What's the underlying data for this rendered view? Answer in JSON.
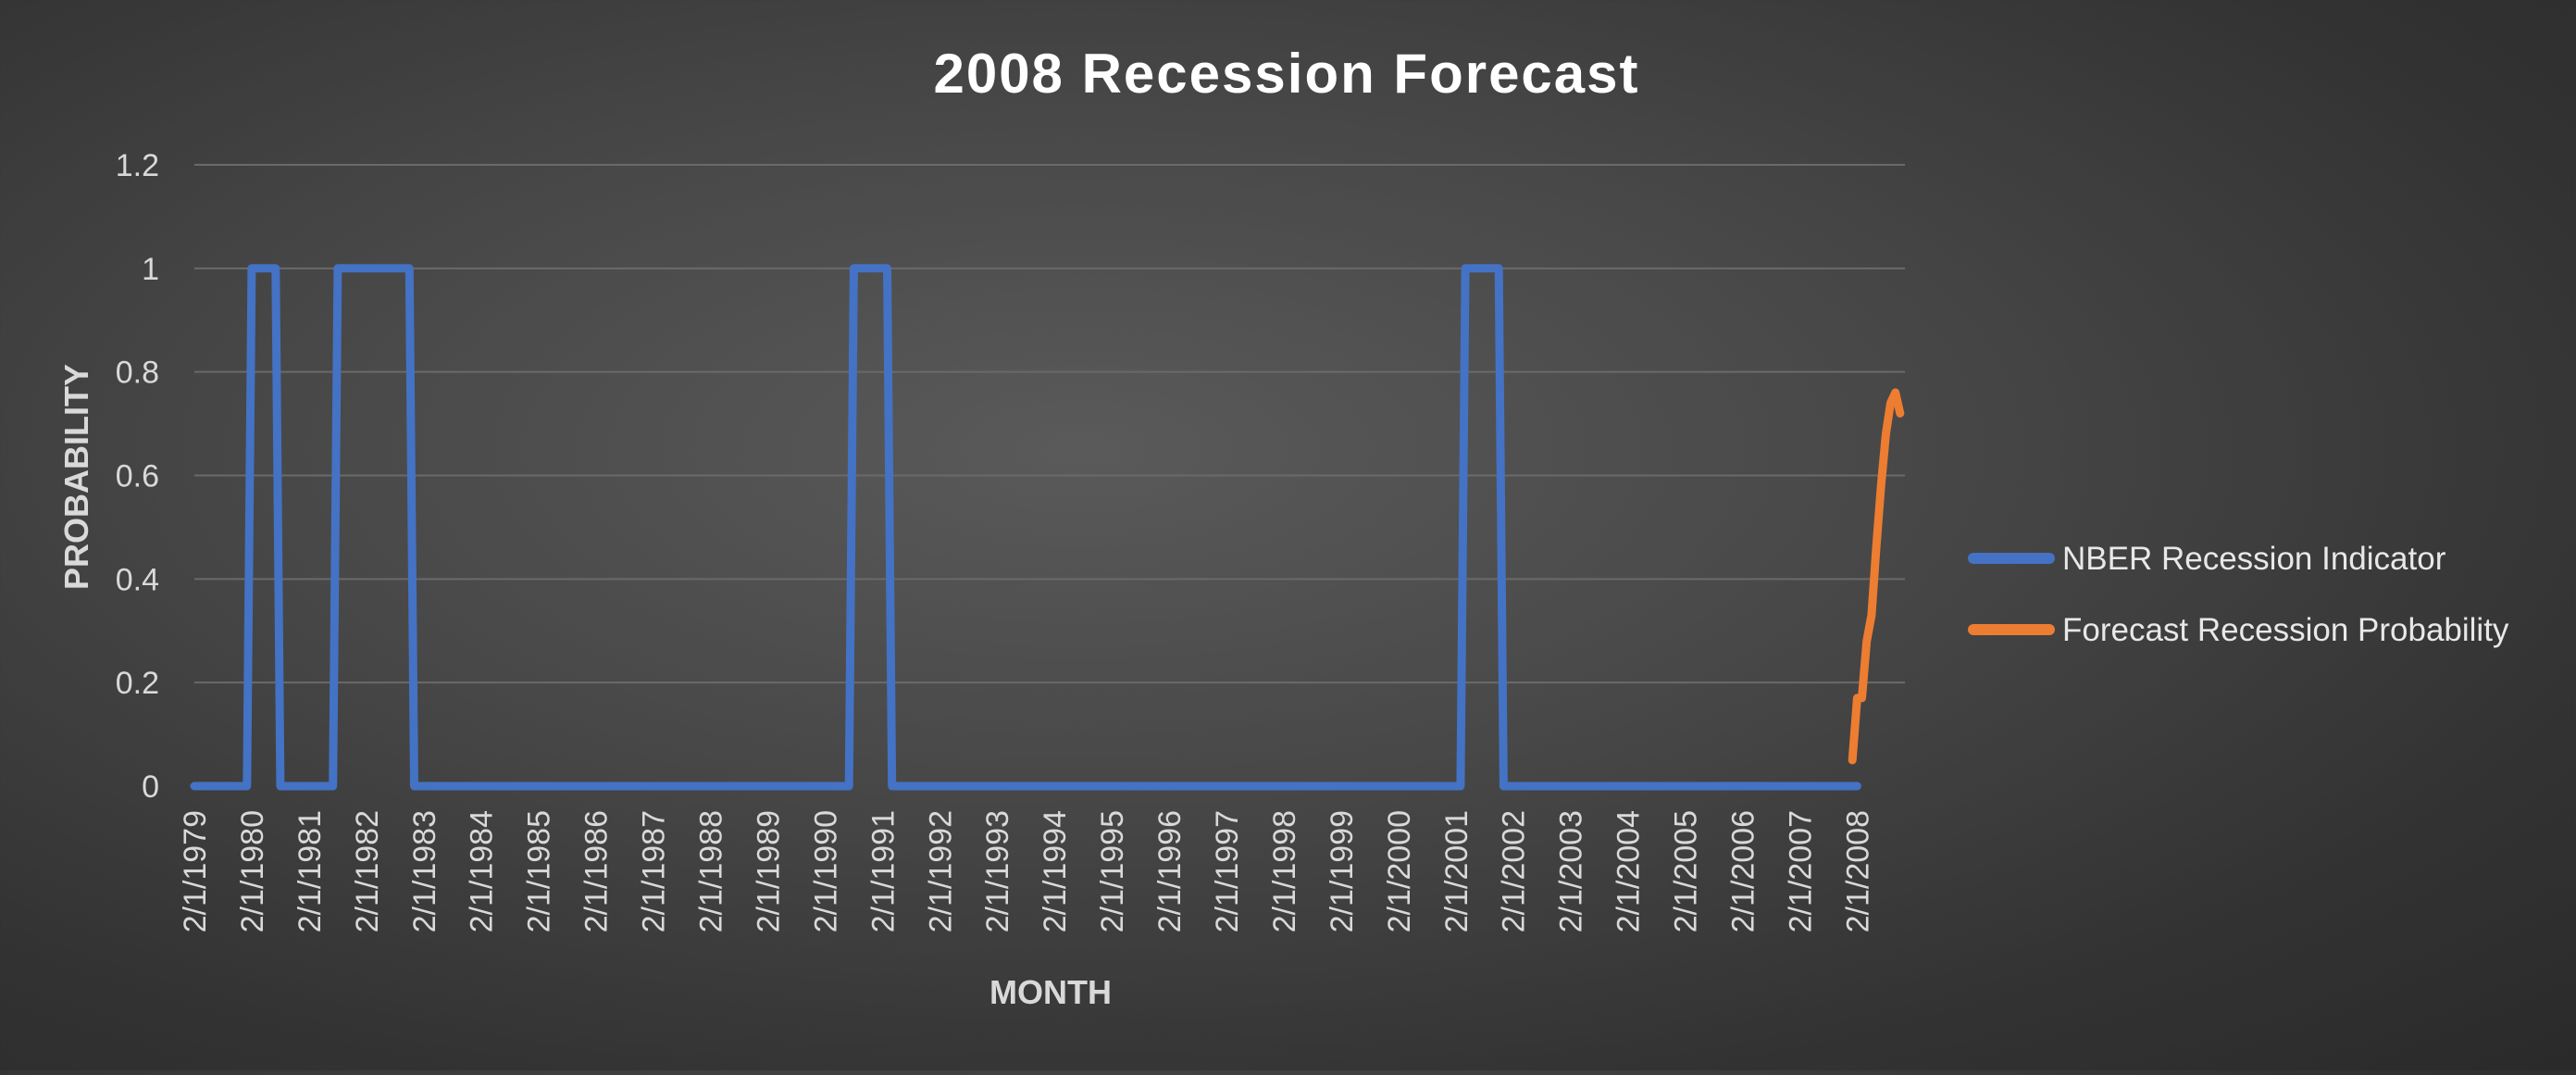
{
  "chart_data": {
    "type": "line",
    "title": "2008 Recession Forecast",
    "xlabel": "MONTH",
    "ylabel": "PROBABILITY",
    "ylim": [
      0,
      1.2
    ],
    "y_ticks": [
      "0",
      "0.2",
      "0.4",
      "0.6",
      "0.8",
      "1",
      "1.2"
    ],
    "x_ticks": [
      "2/1/1979",
      "2/1/1980",
      "2/1/1981",
      "2/1/1982",
      "2/1/1983",
      "2/1/1984",
      "2/1/1985",
      "2/1/1986",
      "2/1/1987",
      "2/1/1988",
      "2/1/1989",
      "2/1/1990",
      "2/1/1991",
      "2/1/1992",
      "2/1/1993",
      "2/1/1994",
      "2/1/1995",
      "2/1/1996",
      "2/1/1997",
      "2/1/1998",
      "2/1/1999",
      "2/1/2000",
      "2/1/2001",
      "2/1/2002",
      "2/1/2003",
      "2/1/2004",
      "2/1/2005",
      "2/1/2006",
      "2/1/2007",
      "2/1/2008"
    ],
    "x_range": [
      "1979-02",
      "2008-12"
    ],
    "grid": true,
    "legend_position": "right",
    "series": [
      {
        "name": "NBER Recession Indicator",
        "color": "#4472C4",
        "points": [
          [
            "1979-02",
            0
          ],
          [
            "1980-01",
            0
          ],
          [
            "1980-02",
            1
          ],
          [
            "1980-07",
            1
          ],
          [
            "1980-08",
            0
          ],
          [
            "1981-07",
            0
          ],
          [
            "1981-08",
            1
          ],
          [
            "1982-11",
            1
          ],
          [
            "1982-12",
            0
          ],
          [
            "1990-07",
            0
          ],
          [
            "1990-08",
            1
          ],
          [
            "1991-03",
            1
          ],
          [
            "1991-04",
            0
          ],
          [
            "2001-03",
            0
          ],
          [
            "2001-04",
            1
          ],
          [
            "2001-11",
            1
          ],
          [
            "2001-12",
            0
          ],
          [
            "2008-02",
            0
          ]
        ]
      },
      {
        "name": "Forecast Recession Probability",
        "color": "#ED7D31",
        "points": [
          [
            "2008-01",
            0.05
          ],
          [
            "2008-02",
            0.17
          ],
          [
            "2008-03",
            0.17
          ],
          [
            "2008-04",
            0.28
          ],
          [
            "2008-05",
            0.33
          ],
          [
            "2008-06",
            0.46
          ],
          [
            "2008-07",
            0.58
          ],
          [
            "2008-08",
            0.68
          ],
          [
            "2008-09",
            0.74
          ],
          [
            "2008-10",
            0.76
          ],
          [
            "2008-11",
            0.72
          ]
        ]
      }
    ]
  }
}
